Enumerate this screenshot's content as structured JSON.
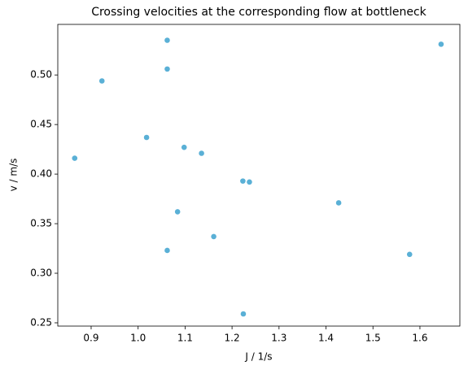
{
  "chart_data": {
    "type": "scatter",
    "title": "Crossing velocities at the corresponding flow at bottleneck",
    "x_label": "J / 1/s",
    "y_label": "v / m/s",
    "color": "#5ab0d6",
    "x": [
      0.865,
      0.923,
      1.018,
      1.062,
      1.062,
      1.062,
      1.084,
      1.098,
      1.135,
      1.161,
      1.223,
      1.237,
      1.224,
      1.427,
      1.578,
      1.645
    ],
    "values": [
      0.416,
      0.494,
      0.437,
      0.535,
      0.506,
      0.323,
      0.362,
      0.427,
      0.421,
      0.337,
      0.393,
      0.392,
      0.259,
      0.371,
      0.319,
      0.531
    ],
    "xlim": [
      0.829,
      1.685
    ],
    "ylim": [
      0.2467,
      0.551
    ],
    "xticks": [
      0.9,
      {
        "value": 1.0,
        "label": "1.0"
      },
      1.1,
      1.2,
      1.3,
      1.4,
      1.5,
      1.6
    ],
    "yticks": [
      {
        "value": 0.25,
        "label": "0.25"
      },
      {
        "value": 0.3,
        "label": "0.30"
      },
      {
        "value": 0.35,
        "label": "0.35"
      },
      {
        "value": 0.4,
        "label": "0.40"
      },
      {
        "value": 0.45,
        "label": "0.45"
      },
      {
        "value": 0.5,
        "label": "0.50"
      }
    ]
  }
}
